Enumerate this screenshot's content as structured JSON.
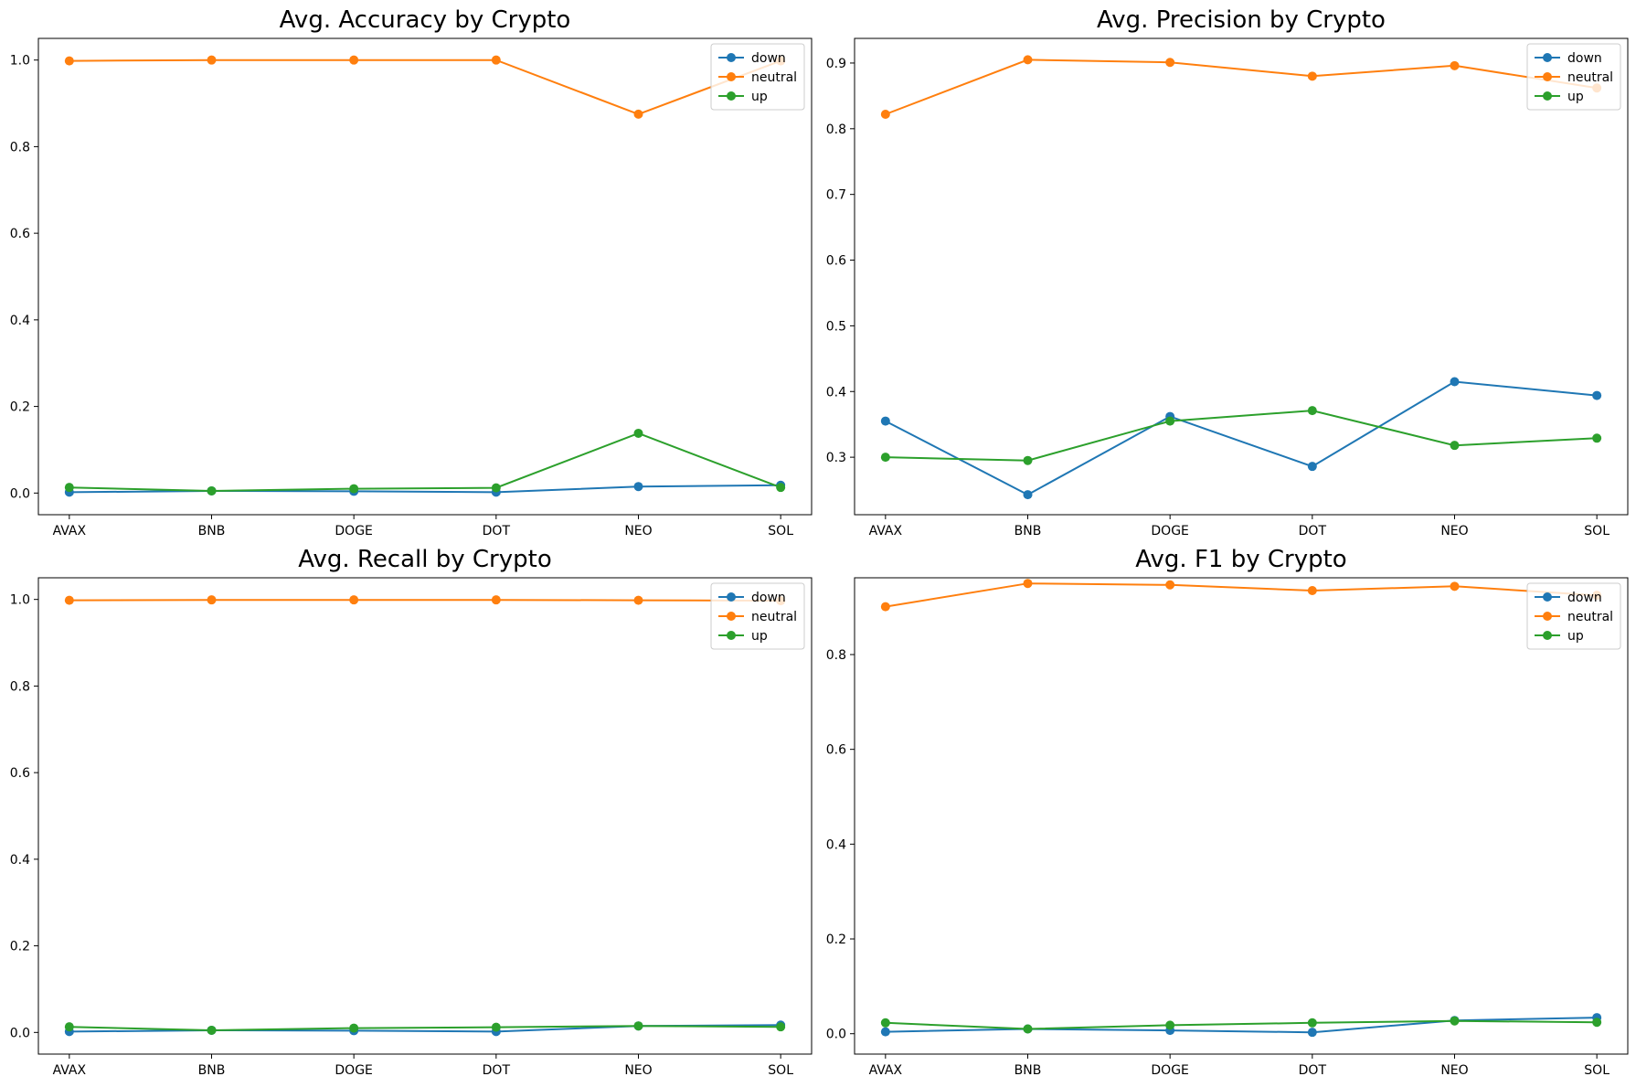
{
  "colors": {
    "down": "#1f77b4",
    "neutral": "#ff7f0e",
    "up": "#2ca02c"
  },
  "chart_data": [
    {
      "type": "line",
      "title": "Avg. Accuracy by Crypto",
      "categories": [
        "AVAX",
        "BNB",
        "DOGE",
        "DOT",
        "NEO",
        "SOL"
      ],
      "ylim": [
        -0.05,
        1.05
      ],
      "yticks": [
        "0.0",
        "0.2",
        "0.4",
        "0.6",
        "0.8",
        "1.0"
      ],
      "legend_position": "top-right",
      "grid": false,
      "series": [
        {
          "name": "down",
          "values": [
            0.002,
            0.005,
            0.004,
            0.002,
            0.015,
            0.018
          ]
        },
        {
          "name": "neutral",
          "values": [
            0.998,
            1.0,
            1.0,
            1.0,
            0.875,
            0.998
          ]
        },
        {
          "name": "up",
          "values": [
            0.013,
            0.005,
            0.01,
            0.012,
            0.138,
            0.013
          ]
        }
      ]
    },
    {
      "type": "line",
      "title": "Avg. Precision by Crypto",
      "categories": [
        "AVAX",
        "BNB",
        "DOGE",
        "DOT",
        "NEO",
        "SOL"
      ],
      "ylim": [
        0.2125,
        0.9375
      ],
      "yticks": [
        "0.3",
        "0.4",
        "0.5",
        "0.6",
        "0.7",
        "0.8",
        "0.9"
      ],
      "legend_position": "top-right",
      "grid": false,
      "series": [
        {
          "name": "down",
          "values": [
            0.355,
            0.243,
            0.362,
            0.286,
            0.415,
            0.394
          ]
        },
        {
          "name": "neutral",
          "values": [
            0.822,
            0.905,
            0.901,
            0.88,
            0.896,
            0.862
          ]
        },
        {
          "name": "up",
          "values": [
            0.3,
            0.295,
            0.355,
            0.371,
            0.318,
            0.329
          ]
        }
      ]
    },
    {
      "type": "line",
      "title": "Avg. Recall by Crypto",
      "categories": [
        "AVAX",
        "BNB",
        "DOGE",
        "DOT",
        "NEO",
        "SOL"
      ],
      "ylim": [
        -0.05,
        1.05
      ],
      "yticks": [
        "0.0",
        "0.2",
        "0.4",
        "0.6",
        "0.8",
        "1.0"
      ],
      "legend_position": "top-right",
      "grid": false,
      "series": [
        {
          "name": "down",
          "values": [
            0.002,
            0.005,
            0.004,
            0.002,
            0.015,
            0.017
          ]
        },
        {
          "name": "neutral",
          "values": [
            0.998,
            0.999,
            0.999,
            0.999,
            0.998,
            0.997
          ]
        },
        {
          "name": "up",
          "values": [
            0.013,
            0.005,
            0.01,
            0.012,
            0.015,
            0.013
          ]
        }
      ]
    },
    {
      "type": "line",
      "title": "Avg. F1 by Crypto",
      "categories": [
        "AVAX",
        "BNB",
        "DOGE",
        "DOT",
        "NEO",
        "SOL"
      ],
      "ylim": [
        -0.043,
        0.962
      ],
      "yticks": [
        "0.0",
        "0.2",
        "0.4",
        "0.6",
        "0.8"
      ],
      "legend_position": "top-right",
      "grid": false,
      "series": [
        {
          "name": "down",
          "values": [
            0.004,
            0.01,
            0.007,
            0.003,
            0.028,
            0.034
          ]
        },
        {
          "name": "neutral",
          "values": [
            0.901,
            0.95,
            0.947,
            0.935,
            0.944,
            0.925
          ]
        },
        {
          "name": "up",
          "values": [
            0.023,
            0.01,
            0.018,
            0.023,
            0.027,
            0.024
          ]
        }
      ]
    }
  ]
}
